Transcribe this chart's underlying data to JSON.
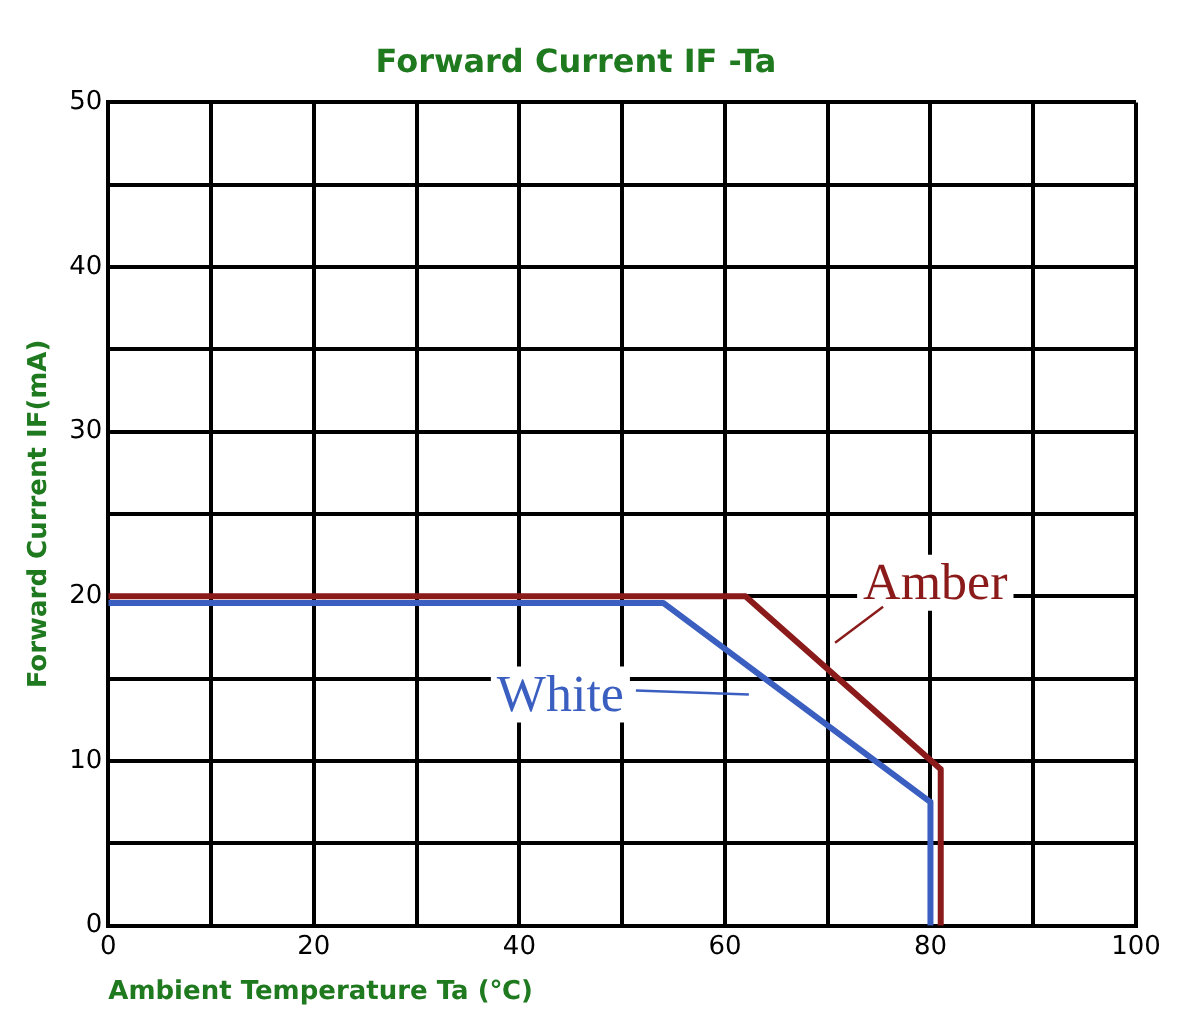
{
  "chart_data": {
    "type": "line",
    "title": "Forward Current IF -Ta",
    "xlabel": "Ambient Temperature Ta (℃)",
    "ylabel": "Forward Current IF(mA)",
    "xlim": [
      0,
      100
    ],
    "ylim": [
      0,
      50
    ],
    "xticks": [
      0,
      {
        "value": 10,
        "label": null
      },
      20,
      {
        "value": 30,
        "label": null
      },
      40,
      {
        "value": 50,
        "label": null
      },
      60,
      {
        "value": 70,
        "label": null
      },
      80,
      {
        "value": 90,
        "label": null
      },
      100
    ],
    "yticks": [
      0,
      {
        "value": 5,
        "label": null
      },
      10,
      {
        "value": 15,
        "label": null
      },
      20,
      {
        "value": 25,
        "label": null
      },
      30,
      {
        "value": 35,
        "label": null
      },
      40,
      {
        "value": 45,
        "label": null
      },
      50
    ],
    "grid": true,
    "legend": "right",
    "marker": "none",
    "line_style": "solid",
    "series": [
      {
        "name": "Amber",
        "color": "#8b1a1a",
        "x": [
          0,
          62,
          81,
          81
        ],
        "values": [
          20,
          20,
          9.5,
          0
        ]
      },
      {
        "name": "White",
        "color": "#3b5fc0",
        "x": [
          0,
          54,
          80,
          80
        ],
        "values": [
          19.6,
          19.6,
          7.5,
          0
        ]
      }
    ]
  }
}
